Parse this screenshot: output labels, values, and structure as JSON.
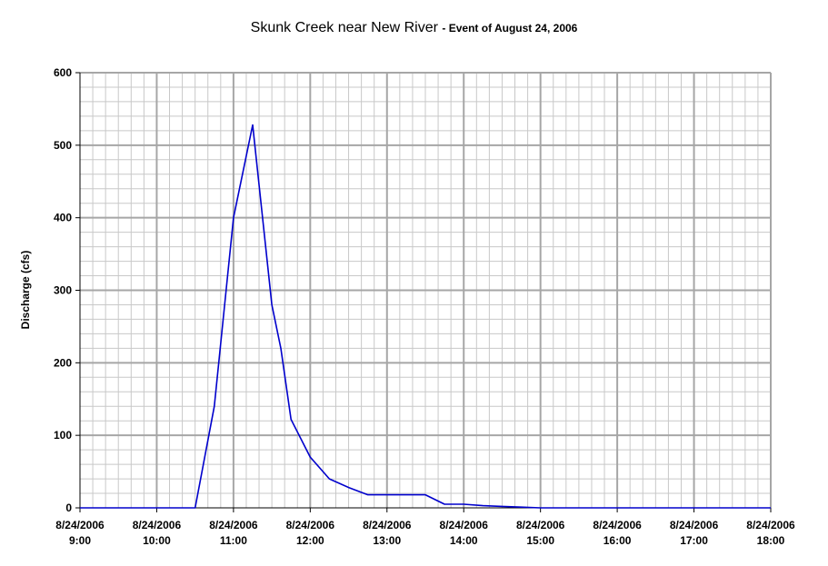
{
  "chart_data": {
    "type": "line",
    "title": "Skunk Creek near New River",
    "subtitle": "- Event of August 24, 2006",
    "xlabel": "",
    "ylabel": "Discharge (cfs)",
    "xlim_hours": [
      9,
      18
    ],
    "ylim": [
      0,
      600
    ],
    "yticks": [
      "0",
      "100",
      "200",
      "300",
      "400",
      "500",
      "600"
    ],
    "xticks": [
      {
        "date": "8/24/2006",
        "time": "9:00"
      },
      {
        "date": "8/24/2006",
        "time": "10:00"
      },
      {
        "date": "8/24/2006",
        "time": "11:00"
      },
      {
        "date": "8/24/2006",
        "time": "12:00"
      },
      {
        "date": "8/24/2006",
        "time": "13:00"
      },
      {
        "date": "8/24/2006",
        "time": "14:00"
      },
      {
        "date": "8/24/2006",
        "time": "15:00"
      },
      {
        "date": "8/24/2006",
        "time": "16:00"
      },
      {
        "date": "8/24/2006",
        "time": "17:00"
      },
      {
        "date": "8/24/2006",
        "time": "18:00"
      }
    ],
    "grid": true,
    "line_color": "#0000cc",
    "series": [
      {
        "x": [
          "9:00",
          "10:30",
          "10:45",
          "11:00",
          "11:15",
          "11:30",
          "11:37",
          "11:45",
          "12:00",
          "12:15",
          "12:30",
          "12:45",
          "13:00",
          "13:15",
          "13:30",
          "13:45",
          "14:00",
          "14:15",
          "14:30",
          "14:45",
          "15:00",
          "16:00",
          "17:00",
          "18:00"
        ],
        "y": [
          0,
          0,
          140,
          400,
          528,
          280,
          220,
          122,
          70,
          40,
          28,
          18,
          18,
          18,
          18,
          5,
          5,
          3,
          2,
          1,
          0,
          0,
          0,
          0
        ]
      }
    ]
  }
}
